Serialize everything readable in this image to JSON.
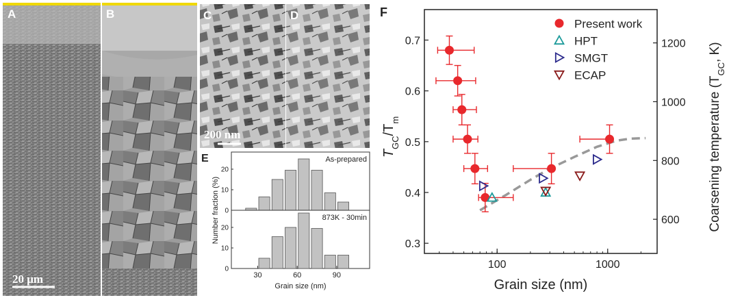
{
  "panels": {
    "A": {
      "label": "A",
      "scalebar": "20 μm"
    },
    "B": {
      "label": "B"
    },
    "C": {
      "label": "C",
      "scalebar": "200 nm"
    },
    "D": {
      "label": "D"
    },
    "E": {
      "label": "E"
    },
    "F": {
      "label": "F"
    }
  },
  "chart_data": [
    {
      "id": "E",
      "type": "bar",
      "xlabel": "Grain size (nm)",
      "ylabel": "Number fraction (%)",
      "xticks": [
        30,
        60,
        90
      ],
      "xlim": [
        10,
        115
      ],
      "subplots": [
        {
          "label": "As-prepared",
          "ylim": [
            0,
            27
          ],
          "yticks": [
            0,
            10,
            20
          ],
          "categories": [
            25,
            35,
            45,
            55,
            65,
            75,
            85,
            95
          ],
          "values": [
            1,
            6.5,
            15,
            19.5,
            25,
            19.5,
            8.5,
            4
          ]
        },
        {
          "label": "873K - 30min",
          "ylim": [
            0,
            27
          ],
          "yticks": [
            0,
            10,
            20
          ],
          "categories": [
            35,
            45,
            55,
            65,
            75,
            85,
            95
          ],
          "values": [
            5,
            15.5,
            20,
            27,
            19.5,
            6.5,
            6.5
          ]
        }
      ]
    },
    {
      "id": "F",
      "type": "scatter",
      "xscale": "log",
      "xlim": [
        22,
        2800
      ],
      "ylim": [
        0.28,
        0.76
      ],
      "xticks": [
        100,
        1000
      ],
      "yticks": [
        0.3,
        0.4,
        0.5,
        0.6,
        0.7
      ],
      "y2ticks": [
        600,
        800,
        1000,
        1200
      ],
      "xlabel": "Grain size (nm)",
      "ylabel_main": "T",
      "ylabel_sub1": "GC",
      "ylabel_mid": "/T",
      "ylabel_sub2": "m",
      "y2label_pre": "Coarsening temperature (T",
      "y2label_sub": "GC",
      "y2label_post": ", K)",
      "legend_position": "top-right",
      "series": [
        {
          "name": "Present work",
          "color": "#e8282c",
          "marker": "circle",
          "x": [
            37,
            44,
            48,
            54,
            63,
            78,
            310,
            1040
          ],
          "y": [
            0.68,
            0.62,
            0.563,
            0.505,
            0.447,
            0.39,
            0.447,
            0.505
          ],
          "x_err_low": [
            29,
            28,
            40,
            40,
            50,
            68,
            140,
            560
          ],
          "x_err_high": [
            62,
            64,
            65,
            67,
            82,
            140,
            320,
            1060
          ],
          "y_err": [
            0.028,
            0.03,
            0.03,
            0.028,
            0.03,
            0.028,
            0.03,
            0.028
          ]
        },
        {
          "name": "HPT",
          "color": "#1b9a9a",
          "marker": "triangle-up",
          "x": [
            90,
            275
          ],
          "y": [
            0.39,
            0.4
          ]
        },
        {
          "name": "SMGT",
          "color": "#2b2a8c",
          "marker": "triangle-right",
          "x": [
            75,
            260,
            800
          ],
          "y": [
            0.413,
            0.428,
            0.465
          ]
        },
        {
          "name": "ECAP",
          "color": "#8a1a1a",
          "marker": "triangle-down",
          "x": [
            275,
            560
          ],
          "y": [
            0.403,
            0.433
          ]
        }
      ],
      "trend_color": "#999999",
      "trend": {
        "x": [
          70,
          120,
          200,
          300,
          500,
          800,
          1200,
          1600,
          2200
        ],
        "y": [
          0.365,
          0.395,
          0.425,
          0.447,
          0.47,
          0.49,
          0.502,
          0.506,
          0.507
        ]
      }
    }
  ]
}
